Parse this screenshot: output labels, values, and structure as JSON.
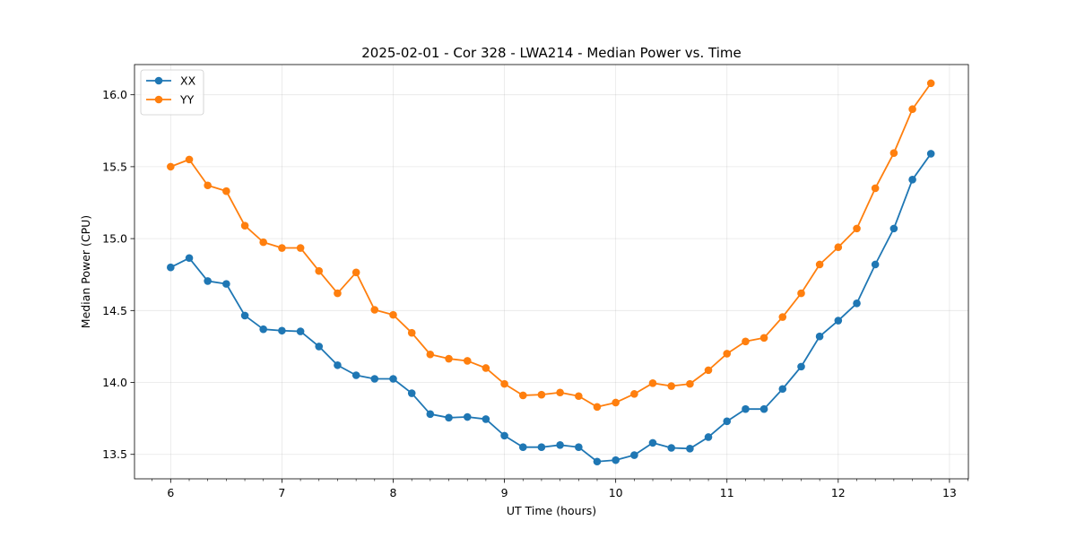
{
  "chart_data": {
    "type": "line",
    "title": "2025-02-01 - Cor 328 - LWA214 - Median Power vs. Time",
    "xlabel": "UT Time (hours)",
    "ylabel": "Median Power (CPU)",
    "xlim": [
      5.675,
      13.17
    ],
    "ylim": [
      13.33,
      16.21
    ],
    "xticks": [
      6,
      7,
      8,
      9,
      10,
      11,
      12,
      13
    ],
    "xtick_labels": [
      "6",
      "7",
      "8",
      "9",
      "10",
      "11",
      "12",
      "13"
    ],
    "yticks": [
      13.5,
      14.0,
      14.5,
      15.0,
      15.5,
      16.0
    ],
    "ytick_labels": [
      "13.5",
      "14.0",
      "14.5",
      "15.0",
      "15.5",
      "16.0"
    ],
    "grid": true,
    "legend_position": "top-left",
    "x": [
      6.0,
      6.167,
      6.333,
      6.5,
      6.667,
      6.833,
      7.0,
      7.167,
      7.333,
      7.5,
      7.667,
      7.833,
      8.0,
      8.167,
      8.333,
      8.5,
      8.667,
      8.833,
      9.0,
      9.167,
      9.333,
      9.5,
      9.667,
      9.833,
      10.0,
      10.167,
      10.333,
      10.5,
      10.667,
      10.833,
      11.0,
      11.167,
      11.333,
      11.5,
      11.667,
      11.833,
      12.0,
      12.167,
      12.333,
      12.5,
      12.667,
      12.833
    ],
    "series": [
      {
        "name": "XX",
        "color": "#1f77b4",
        "values": [
          14.8,
          14.865,
          14.705,
          14.685,
          14.465,
          14.37,
          14.36,
          14.355,
          14.25,
          14.12,
          14.05,
          14.025,
          14.025,
          13.925,
          13.78,
          13.755,
          13.76,
          13.745,
          13.63,
          13.55,
          13.55,
          13.565,
          13.55,
          13.45,
          13.46,
          13.495,
          13.58,
          13.545,
          13.54,
          13.62,
          13.73,
          13.815,
          13.815,
          13.955,
          14.11,
          14.32,
          14.43,
          14.55,
          14.82,
          15.07,
          15.41,
          15.59
        ]
      },
      {
        "name": "YY",
        "color": "#ff7f0e",
        "values": [
          15.5,
          15.55,
          15.37,
          15.33,
          15.09,
          14.975,
          14.935,
          14.935,
          14.775,
          14.62,
          14.765,
          14.505,
          14.47,
          14.345,
          14.195,
          14.165,
          14.15,
          14.1,
          13.99,
          13.91,
          13.915,
          13.93,
          13.905,
          13.83,
          13.86,
          13.92,
          13.995,
          13.975,
          13.99,
          14.085,
          14.2,
          14.285,
          14.31,
          14.455,
          14.62,
          14.82,
          14.94,
          15.07,
          15.35,
          15.595,
          15.9,
          16.08
        ]
      }
    ]
  }
}
